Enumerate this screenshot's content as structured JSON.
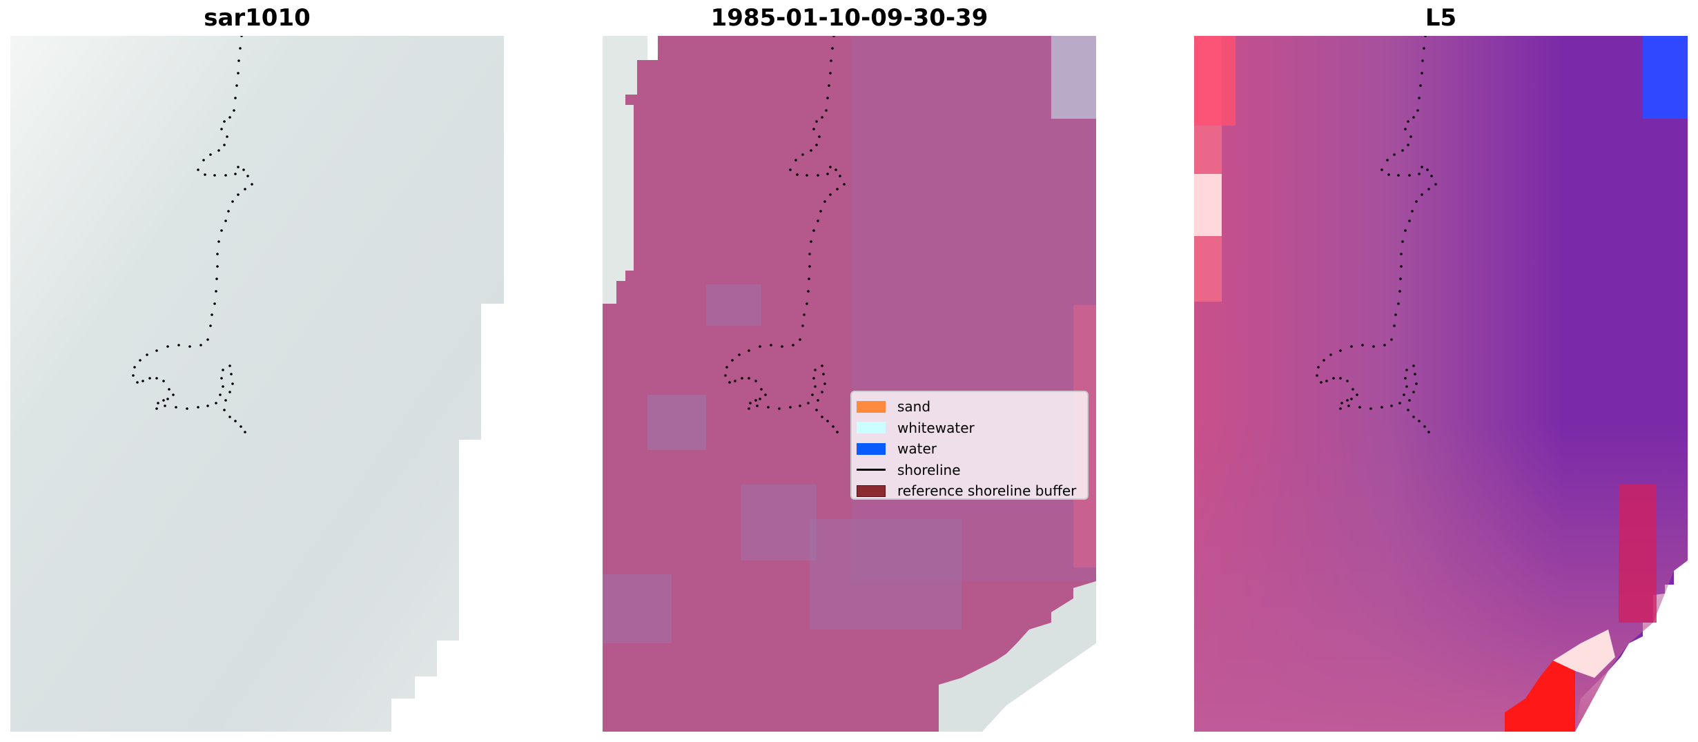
{
  "panels": [
    {
      "title": "sar1010"
    },
    {
      "title": "1985-01-10-09-30-39"
    },
    {
      "title": "L5"
    }
  ],
  "legend": {
    "items": [
      {
        "label": "sand",
        "color": "#ff8a3d",
        "kind": "patch"
      },
      {
        "label": "whitewater",
        "color": "#ccfdff",
        "kind": "patch"
      },
      {
        "label": "water",
        "color": "#0a5cff",
        "kind": "patch"
      },
      {
        "label": "shoreline",
        "color": "#000000",
        "kind": "line"
      },
      {
        "label": "reference shoreline buffer",
        "color": "#8b2a30",
        "kind": "patch"
      }
    ]
  },
  "colors": {
    "background": "#ffffff",
    "sar_base": "#d9e0e0",
    "classification_fill": "#b5588c",
    "whitewater_fill": "#d8e2e2",
    "l5_base": "#b3549a",
    "l5_purple": "#7a2aa8",
    "l5_red": "#ff2020",
    "l5_blue": "#2040ff"
  },
  "icons": {
    "shoreline_marker": "dotted-shoreline"
  }
}
